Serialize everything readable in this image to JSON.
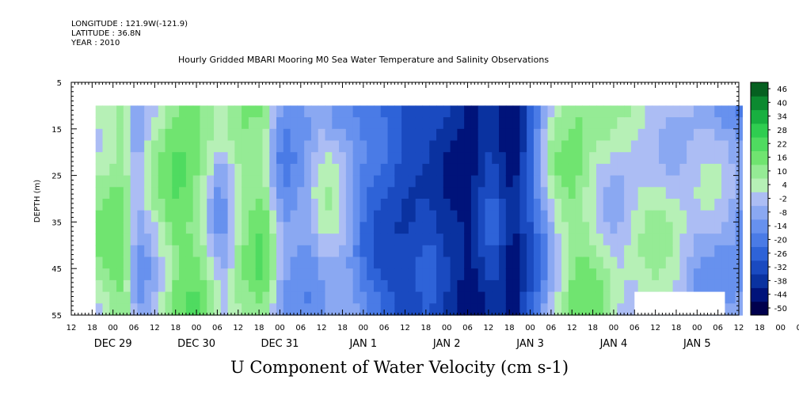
{
  "header": {
    "longitude": "LONGITUDE : 121.9W(-121.9)",
    "latitude": "LATITUDE : 36.8N",
    "year": "YEAR : 2010"
  },
  "chart_data": {
    "type": "heatmap",
    "title": "Hourly Gridded MBARI Mooring M0 Sea Water Temperature and Salinity Observations",
    "xlabel": "U Component of Water Velocity (cm s-1)",
    "ylabel": "DEPTH (m)",
    "ylim": [
      55,
      5
    ],
    "y_ticks": [
      5,
      15,
      25,
      35,
      45,
      55
    ],
    "x_hour_ticks": [
      "12",
      "18",
      "00",
      "06",
      "12",
      "18",
      "00",
      "06",
      "12",
      "18",
      "00",
      "06",
      "12",
      "18",
      "00",
      "06",
      "12",
      "18",
      "00",
      "06",
      "12",
      "18",
      "00",
      "06",
      "12",
      "18",
      "00",
      "06",
      "12",
      "18",
      "00",
      "06",
      "12",
      "18",
      "00",
      "06",
      "12",
      "18",
      "00",
      "06",
      "12",
      "18",
      "00",
      "06",
      "12",
      "18",
      "00",
      "06",
      "12",
      "18",
      "00",
      "06",
      "12",
      "18",
      "00",
      "06",
      "12",
      "18",
      "00",
      "06",
      "12",
      "18",
      "00",
      "06",
      "12",
      "18",
      "00",
      "06",
      "12"
    ],
    "x_dates": [
      "DEC 29",
      "DEC 30",
      "DEC 31",
      "JAN 1",
      "JAN 2",
      "JAN 3",
      "JAN 4",
      "JAN 5"
    ],
    "x_range": [
      "2009-12-28 12:00",
      "2010-01-05 12:00"
    ],
    "data_depth_range": [
      10,
      55
    ],
    "colorbar": {
      "levels": [
        -50,
        -44,
        -38,
        -32,
        -26,
        -20,
        -14,
        -8,
        -2,
        4,
        10,
        16,
        22,
        28,
        34,
        40,
        46
      ],
      "labels": [
        "46",
        "40",
        "34",
        "28",
        "22",
        "16",
        "10",
        "4",
        "-2",
        "-8",
        "-14",
        "-20",
        "-26",
        "-32",
        "-38",
        "-44",
        "-50"
      ]
    },
    "u_time_profile": [
      [
        "2009-12-28 19:00",
        10
      ],
      [
        "2009-12-29 02:00",
        18
      ],
      [
        "2009-12-29 06:00",
        -6
      ],
      [
        "2009-12-29 12:00",
        8
      ],
      [
        "2009-12-29 18:00",
        20
      ],
      [
        "2009-12-30 00:00",
        16
      ],
      [
        "2009-12-30 06:00",
        -4
      ],
      [
        "2009-12-30 12:00",
        12
      ],
      [
        "2009-12-30 18:00",
        18
      ],
      [
        "2009-12-31 00:00",
        -10
      ],
      [
        "2009-12-31 06:00",
        -8
      ],
      [
        "2009-12-31 12:00",
        2
      ],
      [
        "2009-12-31 18:00",
        -4
      ],
      [
        "2010-01-01 00:00",
        -18
      ],
      [
        "2010-01-01 06:00",
        -26
      ],
      [
        "2010-01-01 12:00",
        -32
      ],
      [
        "2010-01-01 18:00",
        -28
      ],
      [
        "2010-01-02 00:00",
        -36
      ],
      [
        "2010-01-02 06:00",
        -40
      ],
      [
        "2010-01-02 12:00",
        -28
      ],
      [
        "2010-01-02 18:00",
        -42
      ],
      [
        "2010-01-03 00:00",
        -20
      ],
      [
        "2010-01-03 06:00",
        6
      ],
      [
        "2010-01-03 12:00",
        16
      ],
      [
        "2010-01-03 18:00",
        10
      ],
      [
        "2010-01-04 00:00",
        2
      ],
      [
        "2010-01-04 06:00",
        4
      ],
      [
        "2010-01-04 12:00",
        6
      ],
      [
        "2010-01-05 06:00",
        -4
      ],
      [
        "2010-01-05 12:00",
        -10
      ]
    ]
  },
  "colors": {
    "scale": [
      "#00004d",
      "#00137a",
      "#0a32a0",
      "#1a4ac0",
      "#2e63d8",
      "#4a7be6",
      "#6791ee",
      "#8aa8f2",
      "#acbdf4",
      "#b6f0b6",
      "#95eb95",
      "#70e470",
      "#4fdb60",
      "#2fcd50",
      "#18b040",
      "#0c8a30",
      "#056020"
    ]
  }
}
